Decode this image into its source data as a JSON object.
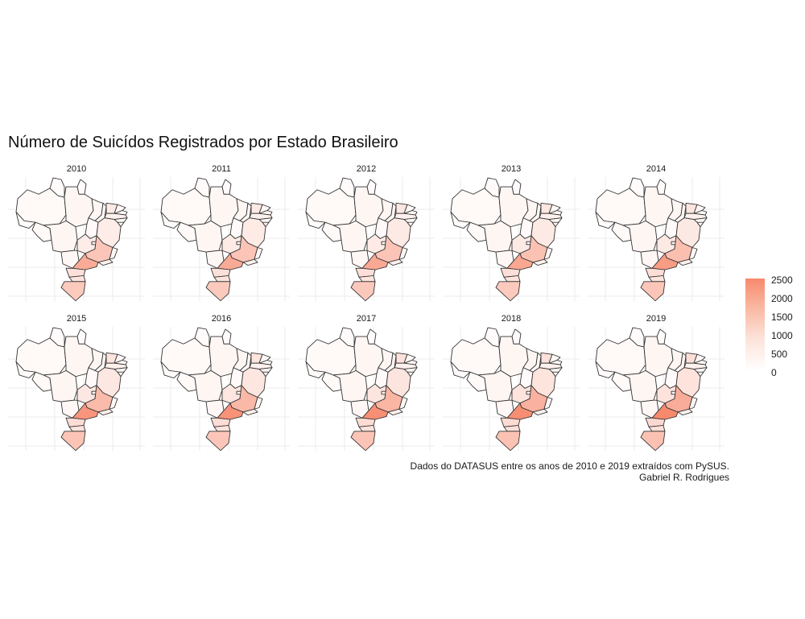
{
  "title": "Número de Suicídos Registrados por Estado Brasileiro",
  "caption": {
    "line1": "Dados do DATASUS entre os anos de 2010 e 2019 extraídos com PySUS.",
    "line2": "Gabriel R. Rodrigues"
  },
  "legend": {
    "ticks": [
      "2500",
      "2000",
      "1500",
      "1000",
      "500",
      "0"
    ],
    "low_color": "#ffffff",
    "high_color": "#f7896d"
  },
  "colors": {
    "border": "#333333",
    "grid": "#ebebeb"
  },
  "panels": [
    {
      "year": "2010",
      "sp": 0.71,
      "mg": 0.48,
      "rs": 0.45,
      "pr": 0.26,
      "sc": 0.22,
      "go": 0.16,
      "ba": 0.16,
      "ce": 0.18
    },
    {
      "year": "2011",
      "sp": 0.72,
      "mg": 0.5,
      "rs": 0.45,
      "pr": 0.26,
      "sc": 0.22,
      "go": 0.17,
      "ba": 0.17,
      "ce": 0.19
    },
    {
      "year": "2012",
      "sp": 0.74,
      "mg": 0.5,
      "rs": 0.46,
      "pr": 0.27,
      "sc": 0.22,
      "go": 0.17,
      "ba": 0.18,
      "ce": 0.2
    },
    {
      "year": "2013",
      "sp": 0.75,
      "mg": 0.52,
      "rs": 0.45,
      "pr": 0.27,
      "sc": 0.23,
      "go": 0.18,
      "ba": 0.18,
      "ce": 0.21
    },
    {
      "year": "2014",
      "sp": 0.84,
      "mg": 0.54,
      "rs": 0.48,
      "pr": 0.28,
      "sc": 0.23,
      "go": 0.19,
      "ba": 0.19,
      "ce": 0.22
    },
    {
      "year": "2015",
      "sp": 0.9,
      "mg": 0.58,
      "rs": 0.5,
      "pr": 0.29,
      "sc": 0.24,
      "go": 0.2,
      "ba": 0.2,
      "ce": 0.23
    },
    {
      "year": "2016",
      "sp": 0.92,
      "mg": 0.6,
      "rs": 0.48,
      "pr": 0.29,
      "sc": 0.24,
      "go": 0.21,
      "ba": 0.21,
      "ce": 0.23
    },
    {
      "year": "2017",
      "sp": 0.95,
      "mg": 0.63,
      "rs": 0.5,
      "pr": 0.3,
      "sc": 0.25,
      "go": 0.22,
      "ba": 0.22,
      "ce": 0.25
    },
    {
      "year": "2018",
      "sp": 0.96,
      "mg": 0.66,
      "rs": 0.52,
      "pr": 0.31,
      "sc": 0.26,
      "go": 0.23,
      "ba": 0.23,
      "ce": 0.26
    },
    {
      "year": "2019",
      "sp": 1.0,
      "mg": 0.7,
      "rs": 0.52,
      "pr": 0.32,
      "sc": 0.27,
      "go": 0.24,
      "ba": 0.24,
      "ce": 0.27
    }
  ]
}
